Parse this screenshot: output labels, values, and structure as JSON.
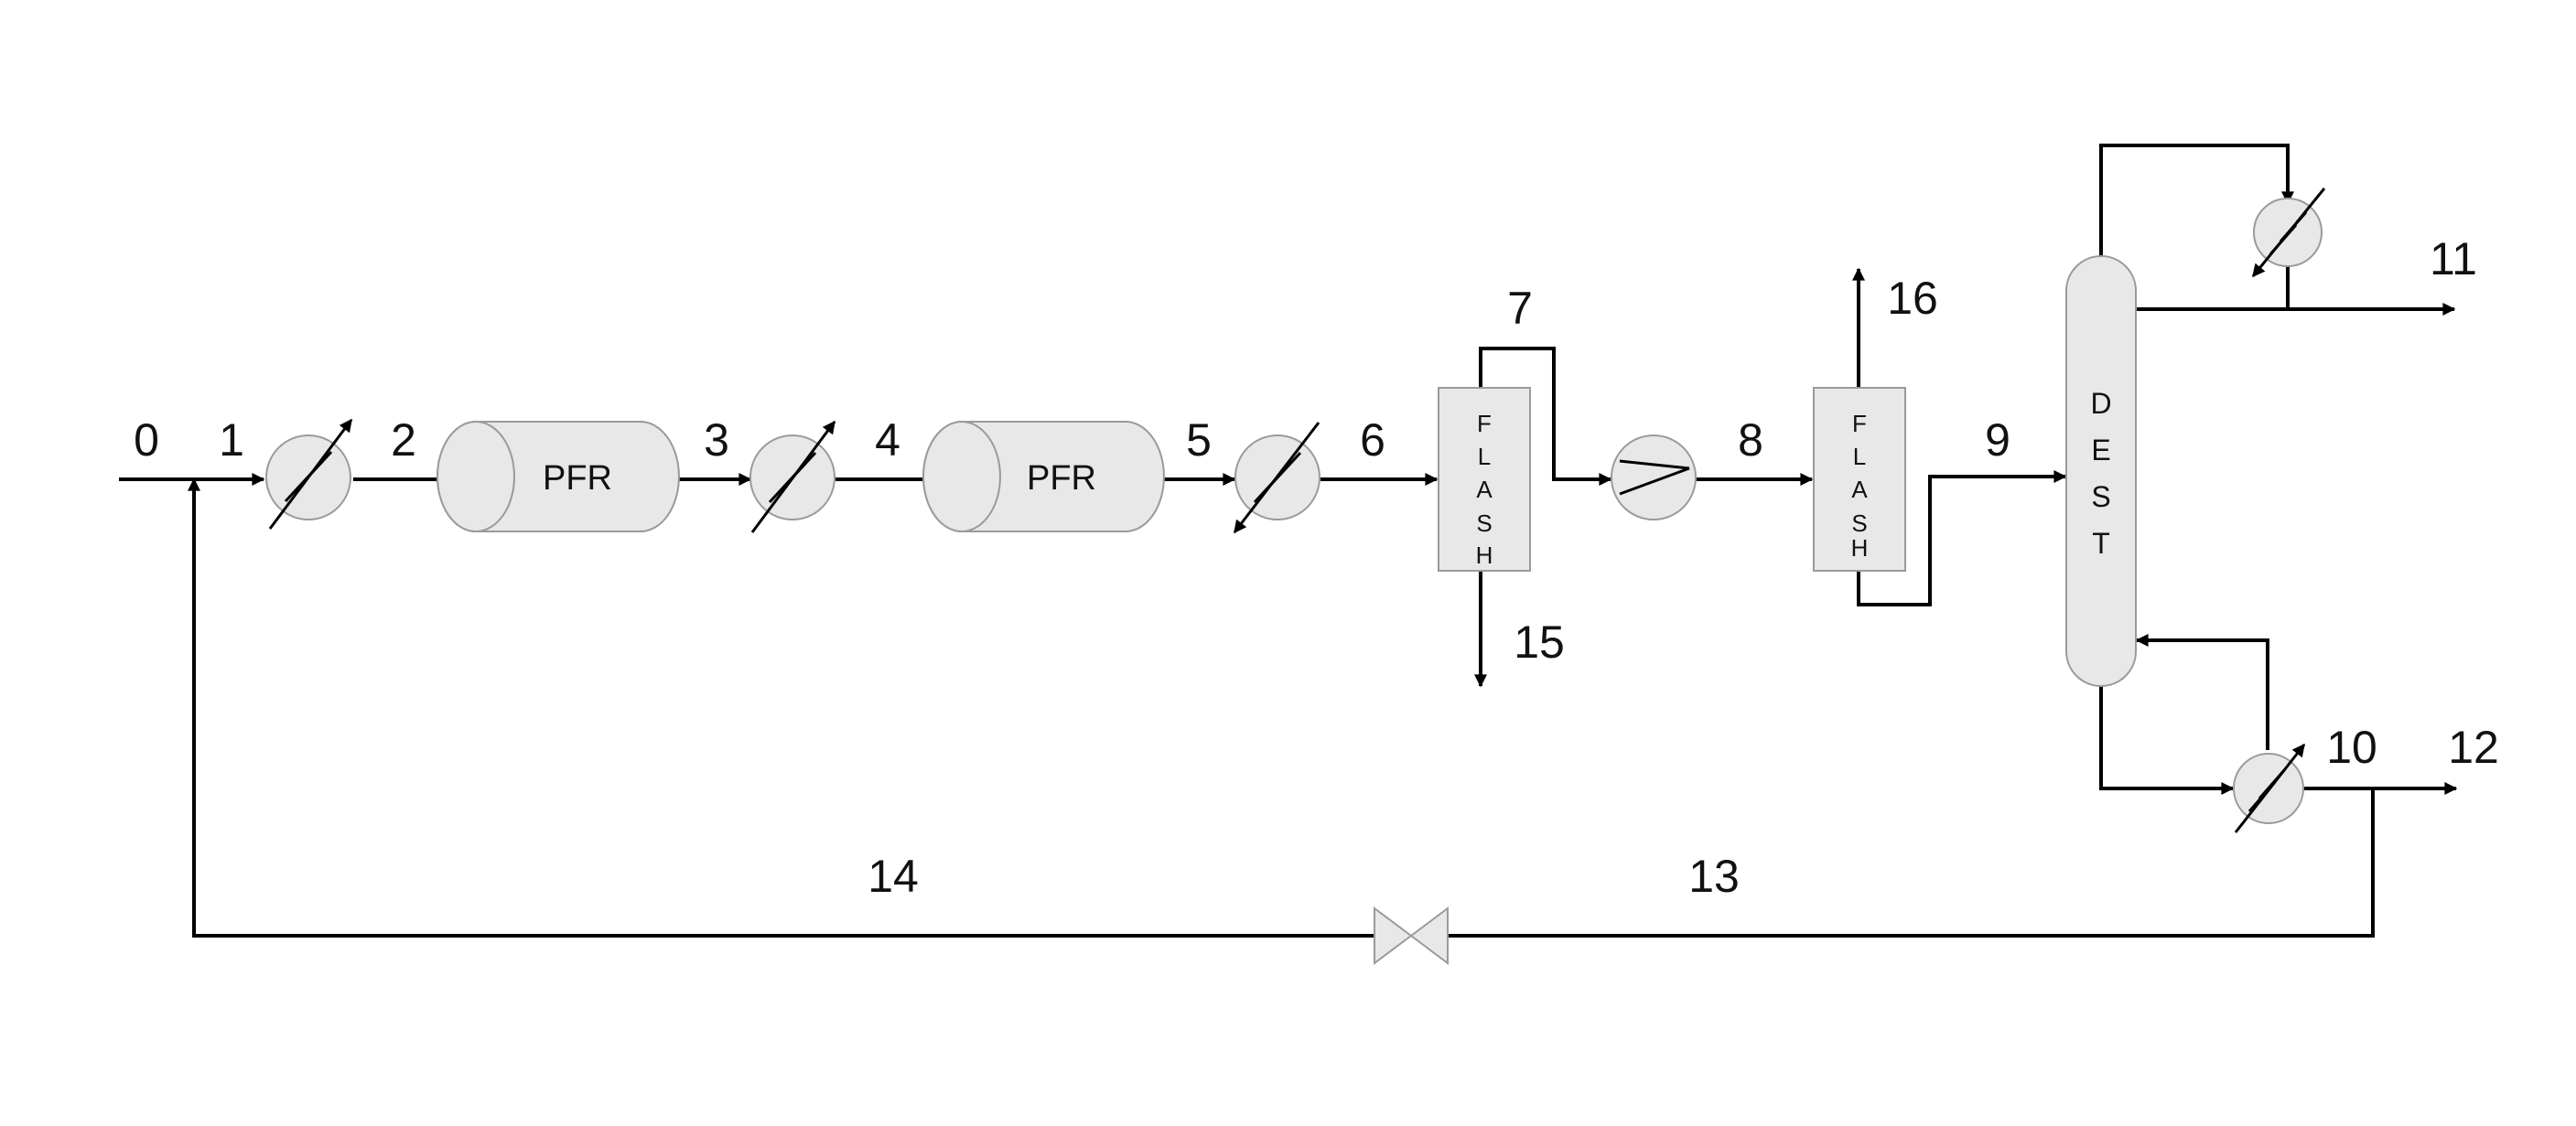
{
  "diagram": {
    "colors": {
      "line": "#000000",
      "equipment_fill": "#e8e8e8",
      "equipment_stroke": "#9a9a9a"
    },
    "streams": [
      "0",
      "1",
      "2",
      "3",
      "4",
      "5",
      "6",
      "7",
      "8",
      "9",
      "10",
      "11",
      "12",
      "13",
      "14",
      "15",
      "16"
    ],
    "units": {
      "reactor_1": "PFR",
      "reactor_2": "PFR",
      "flash_1": [
        "F",
        "L",
        "A",
        "S",
        "H"
      ],
      "flash_2": [
        "F",
        "L",
        "A",
        "S",
        "H"
      ],
      "column": [
        "D",
        "E",
        "S",
        "T"
      ]
    },
    "icons": {
      "heat_exchanger": "heat-exchanger-icon",
      "compressor": "compressor-icon",
      "valve": "valve-icon"
    }
  }
}
